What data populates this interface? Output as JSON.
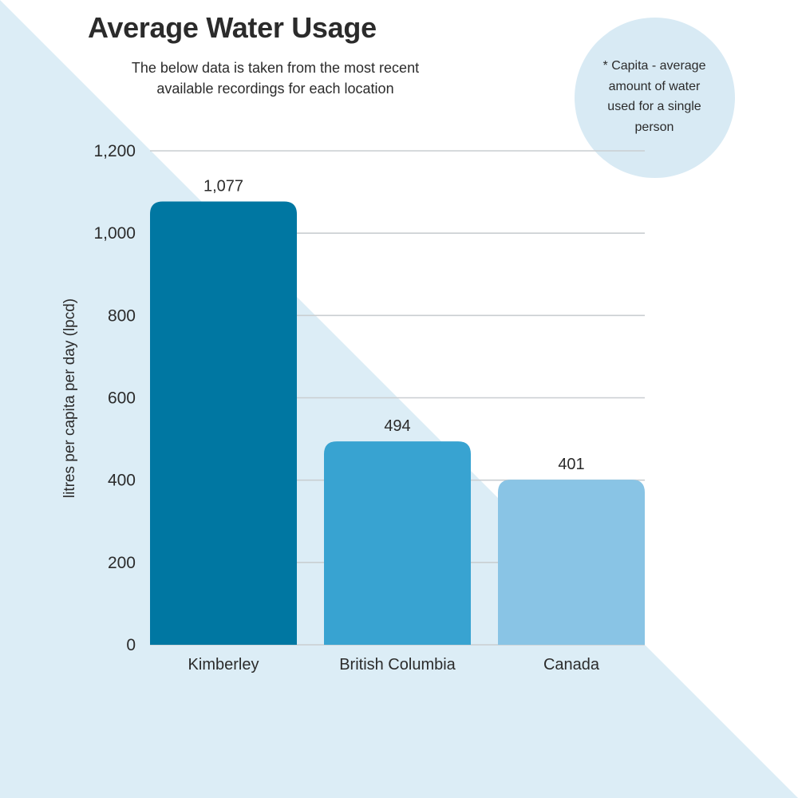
{
  "chart_data": {
    "type": "bar",
    "title": "Average Water Usage",
    "subtitle": "The below data is taken from the most recent available recordings for each location",
    "footnote": "* Capita - average amount of water used for a single person",
    "xlabel": "",
    "ylabel": "litres per capita per day (lpcd)",
    "categories": [
      "Kimberley",
      "British Columbia",
      "Canada"
    ],
    "values": [
      1077,
      494,
      401
    ],
    "value_labels": [
      "1,077",
      "494",
      "401"
    ],
    "ylim": [
      0,
      1200
    ],
    "yticks": [
      0,
      200,
      400,
      600,
      800,
      1000,
      1200
    ],
    "ytick_labels": [
      "0",
      "200",
      "400",
      "600",
      "800",
      "1,000",
      "1,200"
    ],
    "grid": true,
    "colors": [
      "#0077a2",
      "#38a3d1",
      "#89c4e5"
    ]
  },
  "colors": {
    "background_triangle": "#dcedf6",
    "gridline": "#c9ced1",
    "text": "#2b2b2b"
  }
}
